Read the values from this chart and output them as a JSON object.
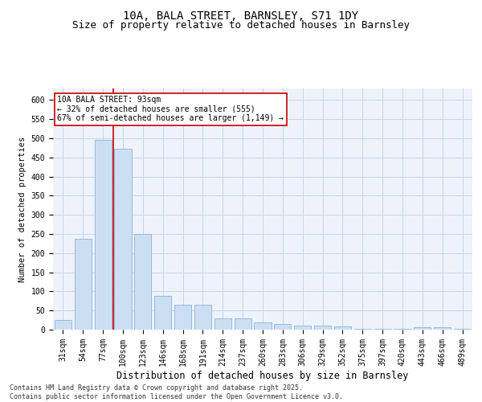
{
  "title": "10A, BALA STREET, BARNSLEY, S71 1DY",
  "subtitle": "Size of property relative to detached houses in Barnsley",
  "xlabel": "Distribution of detached houses by size in Barnsley",
  "ylabel": "Number of detached properties",
  "categories": [
    "31sqm",
    "54sqm",
    "77sqm",
    "100sqm",
    "123sqm",
    "146sqm",
    "168sqm",
    "191sqm",
    "214sqm",
    "237sqm",
    "260sqm",
    "283sqm",
    "306sqm",
    "329sqm",
    "352sqm",
    "375sqm",
    "397sqm",
    "420sqm",
    "443sqm",
    "466sqm",
    "489sqm"
  ],
  "values": [
    25,
    238,
    495,
    472,
    250,
    88,
    65,
    65,
    30,
    30,
    18,
    15,
    10,
    10,
    8,
    3,
    3,
    3,
    6,
    6,
    3
  ],
  "bar_color": "#ccdff2",
  "bar_edge_color": "#8ab4d8",
  "vline_color": "#cc0000",
  "annotation_text": "10A BALA STREET: 93sqm\n← 32% of detached houses are smaller (555)\n67% of semi-detached houses are larger (1,149) →",
  "annotation_box_color": "#ffffff",
  "annotation_box_edge": "#cc0000",
  "ylim": [
    0,
    630
  ],
  "yticks": [
    0,
    50,
    100,
    150,
    200,
    250,
    300,
    350,
    400,
    450,
    500,
    550,
    600
  ],
  "grid_color": "#c8d4e8",
  "background_color": "#eef2fa",
  "footer": "Contains HM Land Registry data © Crown copyright and database right 2025.\nContains public sector information licensed under the Open Government Licence v3.0.",
  "title_fontsize": 10,
  "subtitle_fontsize": 9,
  "xlabel_fontsize": 8.5,
  "ylabel_fontsize": 7.5,
  "tick_fontsize": 7,
  "annotation_fontsize": 7,
  "footer_fontsize": 6
}
